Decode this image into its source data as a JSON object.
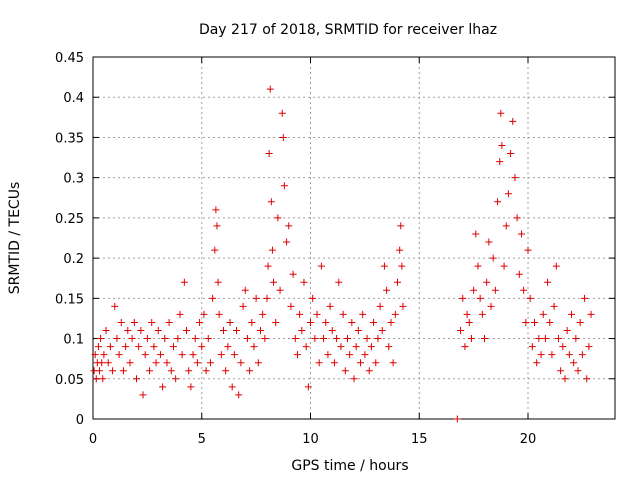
{
  "chart_data": {
    "type": "scatter",
    "title": "Day 217 of 2018, SRMTID for receiver lhaz",
    "xlabel": "GPS time / hours",
    "ylabel": "SRMTID / TECUs",
    "xlim": [
      0,
      24
    ],
    "ylim": [
      0,
      0.45
    ],
    "xticks": [
      0,
      5,
      10,
      15,
      20
    ],
    "xtick_labels": [
      "0",
      "5",
      "10",
      "15",
      "20"
    ],
    "yticks": [
      0,
      0.05,
      0.1,
      0.15,
      0.2,
      0.25,
      0.3,
      0.35,
      0.4,
      0.45
    ],
    "ytick_labels": [
      "0",
      "0.05",
      "0.1",
      "0.15",
      "0.2",
      "0.25",
      "0.3",
      "0.35",
      "0.4",
      "0.45"
    ],
    "grid": true,
    "marker": "plus",
    "color": "#e00000",
    "series": [
      {
        "name": "SRMTID",
        "points": [
          [
            0.05,
            0.06
          ],
          [
            0.1,
            0.08
          ],
          [
            0.15,
            0.05
          ],
          [
            0.2,
            0.07
          ],
          [
            0.25,
            0.09
          ],
          [
            0.3,
            0.06
          ],
          [
            0.35,
            0.1
          ],
          [
            0.4,
            0.07
          ],
          [
            0.45,
            0.05
          ],
          [
            0.5,
            0.08
          ],
          [
            0.6,
            0.11
          ],
          [
            0.7,
            0.07
          ],
          [
            0.8,
            0.09
          ],
          [
            0.9,
            0.06
          ],
          [
            1.0,
            0.14
          ],
          [
            1.1,
            0.1
          ],
          [
            1.2,
            0.08
          ],
          [
            1.3,
            0.12
          ],
          [
            1.4,
            0.06
          ],
          [
            1.5,
            0.09
          ],
          [
            1.6,
            0.11
          ],
          [
            1.7,
            0.07
          ],
          [
            1.8,
            0.1
          ],
          [
            1.9,
            0.12
          ],
          [
            2.0,
            0.05
          ],
          [
            2.1,
            0.09
          ],
          [
            2.2,
            0.11
          ],
          [
            2.3,
            0.03
          ],
          [
            2.4,
            0.08
          ],
          [
            2.5,
            0.1
          ],
          [
            2.6,
            0.06
          ],
          [
            2.7,
            0.12
          ],
          [
            2.8,
            0.09
          ],
          [
            2.9,
            0.07
          ],
          [
            3.0,
            0.11
          ],
          [
            3.1,
            0.08
          ],
          [
            3.2,
            0.04
          ],
          [
            3.3,
            0.1
          ],
          [
            3.4,
            0.07
          ],
          [
            3.5,
            0.12
          ],
          [
            3.6,
            0.06
          ],
          [
            3.7,
            0.09
          ],
          [
            3.8,
            0.05
          ],
          [
            3.9,
            0.1
          ],
          [
            4.0,
            0.13
          ],
          [
            4.1,
            0.08
          ],
          [
            4.2,
            0.17
          ],
          [
            4.3,
            0.11
          ],
          [
            4.4,
            0.06
          ],
          [
            4.5,
            0.04
          ],
          [
            4.6,
            0.08
          ],
          [
            4.7,
            0.1
          ],
          [
            4.8,
            0.07
          ],
          [
            4.9,
            0.12
          ],
          [
            5.0,
            0.09
          ],
          [
            5.1,
            0.13
          ],
          [
            5.2,
            0.06
          ],
          [
            5.3,
            0.1
          ],
          [
            5.4,
            0.07
          ],
          [
            5.5,
            0.15
          ],
          [
            5.6,
            0.21
          ],
          [
            5.65,
            0.26
          ],
          [
            5.7,
            0.24
          ],
          [
            5.75,
            0.17
          ],
          [
            5.8,
            0.13
          ],
          [
            5.9,
            0.08
          ],
          [
            6.0,
            0.11
          ],
          [
            6.1,
            0.06
          ],
          [
            6.2,
            0.09
          ],
          [
            6.3,
            0.12
          ],
          [
            6.4,
            0.04
          ],
          [
            6.5,
            0.08
          ],
          [
            6.6,
            0.11
          ],
          [
            6.7,
            0.03
          ],
          [
            6.8,
            0.07
          ],
          [
            6.9,
            0.14
          ],
          [
            7.0,
            0.16
          ],
          [
            7.1,
            0.1
          ],
          [
            7.2,
            0.06
          ],
          [
            7.3,
            0.12
          ],
          [
            7.4,
            0.09
          ],
          [
            7.5,
            0.15
          ],
          [
            7.6,
            0.07
          ],
          [
            7.7,
            0.11
          ],
          [
            7.8,
            0.13
          ],
          [
            7.9,
            0.1
          ],
          [
            8.0,
            0.15
          ],
          [
            8.05,
            0.19
          ],
          [
            8.1,
            0.33
          ],
          [
            8.15,
            0.41
          ],
          [
            8.2,
            0.27
          ],
          [
            8.25,
            0.21
          ],
          [
            8.3,
            0.17
          ],
          [
            8.4,
            0.12
          ],
          [
            8.5,
            0.25
          ],
          [
            8.6,
            0.16
          ],
          [
            8.7,
            0.38
          ],
          [
            8.75,
            0.35
          ],
          [
            8.8,
            0.29
          ],
          [
            8.9,
            0.22
          ],
          [
            9.0,
            0.24
          ],
          [
            9.1,
            0.14
          ],
          [
            9.2,
            0.18
          ],
          [
            9.3,
            0.1
          ],
          [
            9.4,
            0.08
          ],
          [
            9.5,
            0.13
          ],
          [
            9.6,
            0.11
          ],
          [
            9.7,
            0.17
          ],
          [
            9.8,
            0.09
          ],
          [
            9.9,
            0.04
          ],
          [
            10.0,
            0.12
          ],
          [
            10.1,
            0.15
          ],
          [
            10.2,
            0.1
          ],
          [
            10.3,
            0.13
          ],
          [
            10.4,
            0.07
          ],
          [
            10.5,
            0.19
          ],
          [
            10.6,
            0.1
          ],
          [
            10.7,
            0.12
          ],
          [
            10.8,
            0.08
          ],
          [
            10.9,
            0.14
          ],
          [
            11.0,
            0.11
          ],
          [
            11.1,
            0.07
          ],
          [
            11.2,
            0.1
          ],
          [
            11.3,
            0.17
          ],
          [
            11.4,
            0.09
          ],
          [
            11.5,
            0.13
          ],
          [
            11.6,
            0.06
          ],
          [
            11.7,
            0.1
          ],
          [
            11.8,
            0.08
          ],
          [
            11.9,
            0.12
          ],
          [
            12.0,
            0.05
          ],
          [
            12.1,
            0.09
          ],
          [
            12.2,
            0.11
          ],
          [
            12.3,
            0.07
          ],
          [
            12.4,
            0.13
          ],
          [
            12.5,
            0.08
          ],
          [
            12.6,
            0.1
          ],
          [
            12.7,
            0.06
          ],
          [
            12.8,
            0.09
          ],
          [
            12.9,
            0.12
          ],
          [
            13.0,
            0.07
          ],
          [
            13.1,
            0.1
          ],
          [
            13.2,
            0.14
          ],
          [
            13.3,
            0.11
          ],
          [
            13.4,
            0.19
          ],
          [
            13.5,
            0.16
          ],
          [
            13.6,
            0.09
          ],
          [
            13.7,
            0.12
          ],
          [
            13.8,
            0.07
          ],
          [
            13.9,
            0.13
          ],
          [
            14.0,
            0.17
          ],
          [
            14.1,
            0.21
          ],
          [
            14.15,
            0.24
          ],
          [
            14.2,
            0.19
          ],
          [
            14.25,
            0.14
          ],
          [
            16.75,
            0.0
          ],
          [
            16.9,
            0.11
          ],
          [
            17.0,
            0.15
          ],
          [
            17.1,
            0.09
          ],
          [
            17.2,
            0.13
          ],
          [
            17.3,
            0.12
          ],
          [
            17.4,
            0.1
          ],
          [
            17.5,
            0.16
          ],
          [
            17.6,
            0.23
          ],
          [
            17.7,
            0.19
          ],
          [
            17.8,
            0.15
          ],
          [
            17.9,
            0.13
          ],
          [
            18.0,
            0.1
          ],
          [
            18.1,
            0.17
          ],
          [
            18.2,
            0.22
          ],
          [
            18.3,
            0.14
          ],
          [
            18.4,
            0.2
          ],
          [
            18.5,
            0.16
          ],
          [
            18.6,
            0.27
          ],
          [
            18.7,
            0.32
          ],
          [
            18.75,
            0.38
          ],
          [
            18.8,
            0.34
          ],
          [
            18.9,
            0.19
          ],
          [
            19.0,
            0.24
          ],
          [
            19.1,
            0.28
          ],
          [
            19.2,
            0.33
          ],
          [
            19.3,
            0.37
          ],
          [
            19.4,
            0.3
          ],
          [
            19.5,
            0.25
          ],
          [
            19.6,
            0.18
          ],
          [
            19.7,
            0.23
          ],
          [
            19.8,
            0.16
          ],
          [
            19.9,
            0.12
          ],
          [
            20.0,
            0.21
          ],
          [
            20.1,
            0.15
          ],
          [
            20.2,
            0.09
          ],
          [
            20.3,
            0.12
          ],
          [
            20.4,
            0.07
          ],
          [
            20.5,
            0.1
          ],
          [
            20.6,
            0.08
          ],
          [
            20.7,
            0.13
          ],
          [
            20.8,
            0.1
          ],
          [
            20.9,
            0.17
          ],
          [
            21.0,
            0.12
          ],
          [
            21.1,
            0.08
          ],
          [
            21.2,
            0.14
          ],
          [
            21.3,
            0.19
          ],
          [
            21.4,
            0.1
          ],
          [
            21.5,
            0.06
          ],
          [
            21.6,
            0.09
          ],
          [
            21.7,
            0.05
          ],
          [
            21.8,
            0.11
          ],
          [
            21.9,
            0.08
          ],
          [
            22.0,
            0.13
          ],
          [
            22.1,
            0.07
          ],
          [
            22.2,
            0.1
          ],
          [
            22.3,
            0.06
          ],
          [
            22.4,
            0.12
          ],
          [
            22.5,
            0.08
          ],
          [
            22.6,
            0.15
          ],
          [
            22.7,
            0.05
          ],
          [
            22.8,
            0.09
          ],
          [
            22.9,
            0.13
          ]
        ]
      }
    ]
  }
}
